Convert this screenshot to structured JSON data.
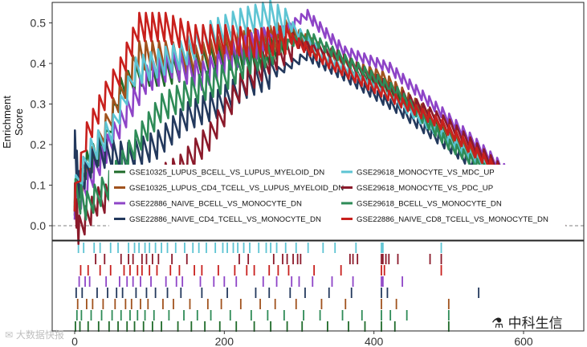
{
  "chart_data": {
    "type": "line",
    "ylabel": "Enrichment\nScore",
    "xlim": [
      0,
      690
    ],
    "ylim": [
      -0.04,
      0.55
    ],
    "x_ticks": [
      0,
      200,
      400,
      600
    ],
    "y_ticks": [
      0.0,
      0.1,
      0.2,
      0.3,
      0.4,
      0.5
    ],
    "y_tick_labels": [
      "0.0",
      "0.1",
      "0.2",
      "0.3",
      "0.4",
      "0.5"
    ],
    "x_tick_labels": [
      "0",
      "200",
      "400",
      "600"
    ],
    "grid": false,
    "legend_position": "bottom-center",
    "baseline": 0,
    "series": [
      {
        "name": "GSE10325_LUPUS_BCELL_VS_LUPUS_MYELOID_DN",
        "color": "#1f6b2a",
        "x": [
          0,
          15,
          40,
          60,
          90,
          120,
          160,
          200,
          250,
          290,
          340,
          410,
          500,
          655
        ],
        "y": [
          0.06,
          0.15,
          0.2,
          0.33,
          0.38,
          0.38,
          0.4,
          0.42,
          0.42,
          0.47,
          0.4,
          0.35,
          0.22,
          0.0
        ]
      },
      {
        "name": "GSE10325_LUPUS_CD4_TCELL_VS_LUPUS_MYELOID_DN",
        "color": "#a0521d",
        "x": [
          0,
          20,
          50,
          85,
          120,
          160,
          200,
          250,
          290,
          350,
          410,
          480,
          655
        ],
        "y": [
          0.07,
          0.16,
          0.28,
          0.42,
          0.42,
          0.41,
          0.44,
          0.45,
          0.48,
          0.41,
          0.37,
          0.26,
          0.0
        ]
      },
      {
        "name": "GSE22886_NAIVE_BCELL_VS_MONOCYTE_DN",
        "color": "#8e44c7",
        "x": [
          0,
          25,
          60,
          95,
          130,
          170,
          210,
          260,
          310,
          360,
          420,
          490,
          655
        ],
        "y": [
          0.05,
          0.13,
          0.25,
          0.36,
          0.4,
          0.37,
          0.42,
          0.46,
          0.52,
          0.43,
          0.39,
          0.28,
          0.0
        ]
      },
      {
        "name": "GSE22886_NAIVE_CD4_TCELL_VS_MONOCYTE_DN",
        "color": "#23395d",
        "x": [
          0,
          5,
          30,
          70,
          110,
          150,
          190,
          230,
          270,
          310,
          360,
          430,
          540,
          655
        ],
        "y": [
          0.2,
          0.1,
          0.18,
          0.17,
          0.2,
          0.27,
          0.3,
          0.35,
          0.38,
          0.42,
          0.37,
          0.29,
          0.14,
          0.0
        ]
      },
      {
        "name": "GSE29618_MONOCYTE_VS_MDC_UP",
        "color": "#5dc4d3",
        "x": [
          0,
          20,
          50,
          80,
          110,
          140,
          180,
          220,
          260,
          290,
          330,
          400,
          480,
          655
        ],
        "y": [
          0.09,
          0.18,
          0.24,
          0.38,
          0.4,
          0.42,
          0.47,
          0.5,
          0.52,
          0.49,
          0.42,
          0.35,
          0.24,
          0.0
        ]
      },
      {
        "name": "GSE29618_MONOCYTE_VS_PDC_UP",
        "color": "#8b1a2b",
        "x": [
          0,
          5,
          30,
          60,
          100,
          140,
          180,
          220,
          260,
          300,
          350,
          420,
          500,
          655
        ],
        "y": [
          0.07,
          -0.01,
          0.06,
          0.08,
          0.1,
          0.14,
          0.22,
          0.34,
          0.41,
          0.45,
          0.42,
          0.34,
          0.25,
          0.0
        ]
      },
      {
        "name": "GSE29618_BCELL_VS_MONOCYTE_DN",
        "color": "#2e8b57",
        "x": [
          0,
          15,
          45,
          80,
          115,
          155,
          195,
          235,
          275,
          310,
          360,
          430,
          500,
          655
        ],
        "y": [
          0.08,
          0.05,
          0.1,
          0.2,
          0.29,
          0.33,
          0.36,
          0.41,
          0.44,
          0.47,
          0.41,
          0.33,
          0.2,
          0.0
        ]
      },
      {
        "name": "GSE22886_NAIVE_CD8_TCELL_VS_MONOCYTE_DN",
        "color": "#c8201d",
        "x": [
          0,
          15,
          40,
          60,
          85,
          120,
          160,
          200,
          240,
          290,
          340,
          410,
          490,
          655
        ],
        "y": [
          0.07,
          0.22,
          0.32,
          0.38,
          0.49,
          0.49,
          0.46,
          0.46,
          0.45,
          0.46,
          0.4,
          0.33,
          0.25,
          0.0
        ]
      }
    ],
    "rug_rows": [
      {
        "color": "#5dc4d3",
        "x": [
          5,
          12,
          26,
          34,
          48,
          58,
          72,
          80,
          86,
          94,
          100,
          108,
          116,
          124,
          135,
          147,
          158,
          166,
          176,
          188,
          198,
          204,
          212,
          218,
          226,
          234,
          246,
          256,
          262,
          270,
          282,
          296,
          312,
          332,
          348,
          376,
          410,
          412,
          490
        ]
      },
      {
        "color": "#8b1a2b",
        "x": [
          28,
          40,
          62,
          72,
          78,
          90,
          96,
          104,
          112,
          130,
          150,
          220,
          232,
          266,
          278,
          284,
          292,
          298,
          302,
          368,
          372,
          378,
          410,
          412,
          416,
          420,
          432,
          475,
          490
        ]
      },
      {
        "color": "#c8201d",
        "x": [
          8,
          18,
          34,
          48,
          66,
          74,
          84,
          90,
          100,
          110,
          128,
          140,
          160,
          170,
          192,
          214,
          230,
          240,
          260,
          272,
          286,
          320,
          356,
          410,
          414,
          490
        ]
      },
      {
        "color": "#8e44c7",
        "x": [
          6,
          14,
          20,
          42,
          60,
          70,
          78,
          88,
          102,
          122,
          136,
          144,
          168,
          186,
          200,
          216,
          252,
          270,
          290,
          300,
          318,
          344,
          372,
          410,
          412,
          438
        ]
      },
      {
        "color": "#23395d",
        "x": [
          2,
          10,
          30,
          44,
          56,
          64,
          82,
          96,
          108,
          124,
          142,
          170,
          204,
          242,
          260,
          288,
          308,
          340,
          370,
          410,
          418,
          540
        ]
      },
      {
        "color": "#a0521d",
        "x": [
          4,
          16,
          24,
          38,
          54,
          68,
          76,
          88,
          98,
          118,
          132,
          154,
          178,
          196,
          222,
          248,
          268,
          296,
          330,
          362,
          410,
          430,
          500
        ]
      },
      {
        "color": "#2e8b57",
        "x": [
          3,
          9,
          22,
          36,
          50,
          62,
          74,
          84,
          94,
          106,
          126,
          146,
          164,
          182,
          208,
          236,
          258,
          280,
          306,
          328,
          358,
          384,
          410,
          422,
          444,
          500
        ]
      },
      {
        "color": "#1f6b2a",
        "x": [
          1,
          7,
          18,
          32,
          46,
          58,
          70,
          80,
          92,
          104,
          116,
          138,
          156,
          174,
          194,
          216,
          240,
          262,
          284,
          304,
          338,
          366,
          388,
          410,
          428,
          500
        ]
      }
    ]
  },
  "watermarks": {
    "left": "✉ 大数据快报",
    "right": "⚗ 中科生信"
  }
}
